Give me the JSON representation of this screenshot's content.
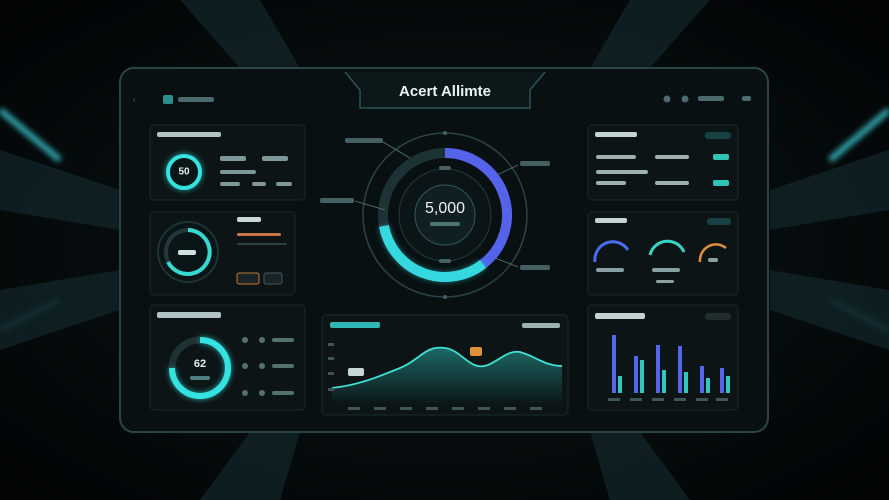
{
  "header": {
    "title": "Acert Allimte"
  },
  "center_gauge": {
    "value": "5,000"
  },
  "left_gauge": {
    "value": "50"
  },
  "bottom_gauge": {
    "value": "62"
  }
}
